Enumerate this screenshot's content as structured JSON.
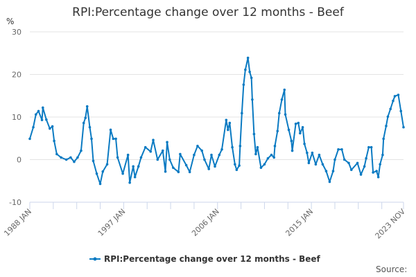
{
  "chart_data": {
    "type": "line",
    "title": "RPI:Percentage change over 12 months - Beef",
    "ylabel": "%",
    "xlabel": "",
    "ylim": [
      -10,
      30
    ],
    "yticks": [
      "30",
      "20",
      "10",
      "0",
      "-10"
    ],
    "ytick_values": [
      30,
      20,
      10,
      0,
      -10
    ],
    "xtick_labels": [
      "1988 JAN",
      "1997 JAN",
      "2006 JAN",
      "2015 JAN",
      "2023 NOV"
    ],
    "xtick_dates": [
      "1988-01",
      "1997-01",
      "2006-01",
      "2015-01",
      "2023-11"
    ],
    "xlim": [
      "1988-01",
      "2023-11"
    ],
    "grid": true,
    "legend_position": "bottom",
    "color": "#0a7ac2",
    "series": [
      {
        "name": "RPI:Percentage change over 12 months - Beef",
        "x": [
          "1988-01",
          "1988-05",
          "1988-08",
          "1988-11",
          "1989-03",
          "1989-04",
          "1989-08",
          "1989-12",
          "1990-03",
          "1990-05",
          "1990-08",
          "1991-01",
          "1991-07",
          "1991-12",
          "1992-04",
          "1992-08",
          "1992-12",
          "1993-03",
          "1993-05",
          "1993-07",
          "1993-10",
          "1993-12",
          "1994-02",
          "1994-06",
          "1994-10",
          "1995-01",
          "1995-06",
          "1995-10",
          "1996-01",
          "1996-04",
          "1996-06",
          "1996-12",
          "1997-06",
          "1997-08",
          "1997-12",
          "1998-02",
          "1998-06",
          "1998-09",
          "1999-02",
          "1999-08",
          "1999-11",
          "2000-04",
          "2000-10",
          "2001-01",
          "2001-03",
          "2001-06",
          "2001-10",
          "2002-04",
          "2002-06",
          "2003-01",
          "2003-05",
          "2003-10",
          "2004-02",
          "2004-07",
          "2004-10",
          "2005-03",
          "2005-06",
          "2005-10",
          "2006-03",
          "2006-06",
          "2006-11",
          "2007-01",
          "2007-03",
          "2007-06",
          "2007-09",
          "2007-11",
          "2008-02",
          "2008-03",
          "2008-05",
          "2008-07",
          "2008-09",
          "2008-12",
          "2009-02",
          "2009-04",
          "2009-05",
          "2009-07",
          "2009-09",
          "2009-11",
          "2010-03",
          "2010-07",
          "2010-11",
          "2011-03",
          "2011-06",
          "2011-07",
          "2011-10",
          "2011-12",
          "2012-03",
          "2012-06",
          "2012-07",
          "2012-11",
          "2013-02",
          "2013-03",
          "2013-07",
          "2013-10",
          "2013-12",
          "2014-03",
          "2014-05",
          "2014-08",
          "2014-10",
          "2015-02",
          "2015-06",
          "2015-10",
          "2016-02",
          "2016-06",
          "2016-10",
          "2017-02",
          "2017-04",
          "2017-08",
          "2017-12",
          "2018-03",
          "2018-08",
          "2018-11",
          "2019-06",
          "2019-10",
          "2020-02",
          "2020-04",
          "2020-07",
          "2020-10",
          "2020-12",
          "2021-04",
          "2021-06",
          "2021-08",
          "2021-11",
          "2021-12",
          "2022-03",
          "2022-05",
          "2022-08",
          "2022-11",
          "2023-01",
          "2023-05",
          "2023-08",
          "2023-11"
        ],
        "values": [
          4.9,
          7.6,
          10.6,
          11.4,
          9.3,
          12.2,
          9.4,
          7.3,
          7.8,
          4.4,
          1.3,
          0.5,
          0,
          0.5,
          -0.5,
          0.5,
          2.1,
          8.6,
          9.8,
          12.5,
          7.6,
          4.9,
          -0.3,
          -3.3,
          -5.7,
          -2.8,
          -1.1,
          7.0,
          4.9,
          4.9,
          0.5,
          -3.3,
          1.1,
          -5.4,
          -1.6,
          -4.1,
          -1.6,
          0.5,
          2.9,
          1.9,
          4.6,
          0,
          2.1,
          -2.8,
          4.1,
          0,
          -1.9,
          -2.9,
          1.3,
          -1.3,
          -2.9,
          1.1,
          3.2,
          2.1,
          0,
          -2.2,
          1.1,
          -1.6,
          1.1,
          2.4,
          9.3,
          7.0,
          8.6,
          2.9,
          -1.1,
          -2.4,
          -1.4,
          3.2,
          10.9,
          17.6,
          21.1,
          23.9,
          20.6,
          19.2,
          14.1,
          6.0,
          1.3,
          2.9,
          -1.9,
          -1.1,
          0.3,
          1.1,
          0.5,
          3.2,
          6.7,
          10.9,
          14.1,
          16.4,
          10.6,
          7.0,
          4.4,
          2.1,
          8.4,
          8.6,
          6.2,
          7.6,
          3.7,
          1.6,
          -0.8,
          1.6,
          -1.1,
          1.1,
          -1.1,
          -2.7,
          -5.2,
          -2.7,
          0,
          2.4,
          2.4,
          0,
          -0.8,
          -2.4,
          -0.8,
          -3.5,
          -1.6,
          0.3,
          2.9,
          2.9,
          -3.0,
          -2.7,
          -4.1,
          -1.1,
          1.1,
          4.9,
          7.9,
          10.1,
          11.9,
          13.8,
          14.9,
          15.2,
          11.4,
          7.6
        ]
      }
    ]
  },
  "source_label": "Source:"
}
